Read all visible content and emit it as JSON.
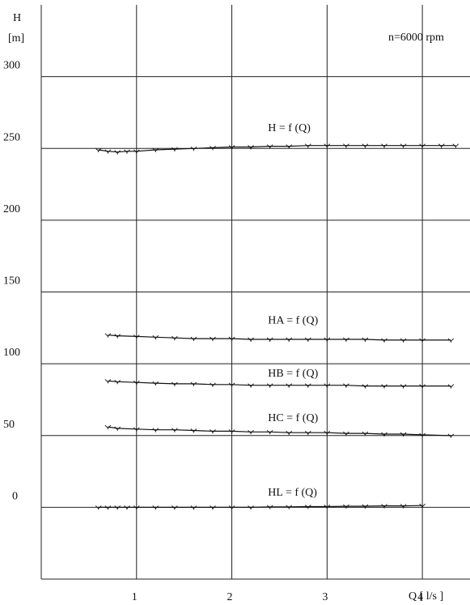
{
  "chart_data": {
    "type": "line",
    "ylabel": [
      "H",
      "[m]"
    ],
    "xlabel": "Q [ l/s ]",
    "annotation": "n=6000 rpm",
    "xlim": [
      0,
      4.5
    ],
    "ylim": [
      -50,
      350
    ],
    "x_ticks": [
      1,
      2,
      3,
      4
    ],
    "y_ticks": [
      0,
      50,
      100,
      150,
      200,
      250,
      300
    ],
    "grid": true,
    "series": [
      {
        "name": "H = f (Q)",
        "x": [
          0.6,
          0.7,
          0.8,
          0.9,
          1.0,
          1.2,
          1.4,
          1.6,
          1.8,
          2.0,
          2.2,
          2.4,
          2.6,
          2.8,
          3.0,
          3.2,
          3.4,
          3.6,
          3.8,
          4.0,
          4.2,
          4.35
        ],
        "y": [
          249,
          248,
          247.5,
          248,
          248,
          249,
          249.5,
          250,
          250.5,
          251,
          251,
          251.5,
          251.5,
          252,
          252,
          252,
          252,
          252,
          252,
          252,
          252,
          252
        ]
      },
      {
        "name": "HA = f (Q)",
        "x": [
          0.7,
          0.8,
          1.0,
          1.2,
          1.4,
          1.6,
          1.8,
          2.0,
          2.2,
          2.4,
          2.6,
          2.8,
          3.0,
          3.2,
          3.4,
          3.6,
          3.8,
          4.0,
          4.3
        ],
        "y": [
          120,
          119.5,
          119,
          118.5,
          118,
          117.5,
          117.5,
          117.5,
          117,
          117,
          117,
          117,
          117,
          117,
          117,
          116.5,
          116.5,
          116.5,
          116.5
        ]
      },
      {
        "name": "HB = f (Q)",
        "x": [
          0.7,
          0.8,
          1.0,
          1.2,
          1.4,
          1.6,
          1.8,
          2.0,
          2.2,
          2.4,
          2.6,
          2.8,
          3.0,
          3.2,
          3.4,
          3.6,
          3.8,
          4.0,
          4.3
        ],
        "y": [
          88,
          87.5,
          87,
          86.5,
          86,
          86,
          85.5,
          85.5,
          85,
          85,
          85,
          85,
          85,
          85,
          84.5,
          84.5,
          84.5,
          84.5,
          84.5
        ]
      },
      {
        "name": "HC = f (Q)",
        "x": [
          0.7,
          0.8,
          1.0,
          1.2,
          1.4,
          1.6,
          1.8,
          2.0,
          2.2,
          2.4,
          2.6,
          2.8,
          3.0,
          3.2,
          3.4,
          3.6,
          3.8,
          4.0,
          4.3
        ],
        "y": [
          56,
          55,
          54.5,
          54,
          54,
          53.5,
          53,
          53,
          52.5,
          52.5,
          52,
          52,
          52,
          51.5,
          51.5,
          51,
          51,
          50.5,
          50
        ]
      },
      {
        "name": "HL = f (Q)",
        "x": [
          0.6,
          0.7,
          0.8,
          0.9,
          1.0,
          1.2,
          1.4,
          1.6,
          1.8,
          2.0,
          2.2,
          2.4,
          2.6,
          2.8,
          3.0,
          3.2,
          3.4,
          3.6,
          3.8,
          4.0
        ],
        "y": [
          0,
          0,
          0,
          0,
          0,
          0,
          0,
          0,
          0,
          0,
          0,
          0.3,
          0.3,
          0.5,
          0.5,
          0.7,
          0.8,
          1,
          1,
          1.2
        ]
      }
    ]
  }
}
